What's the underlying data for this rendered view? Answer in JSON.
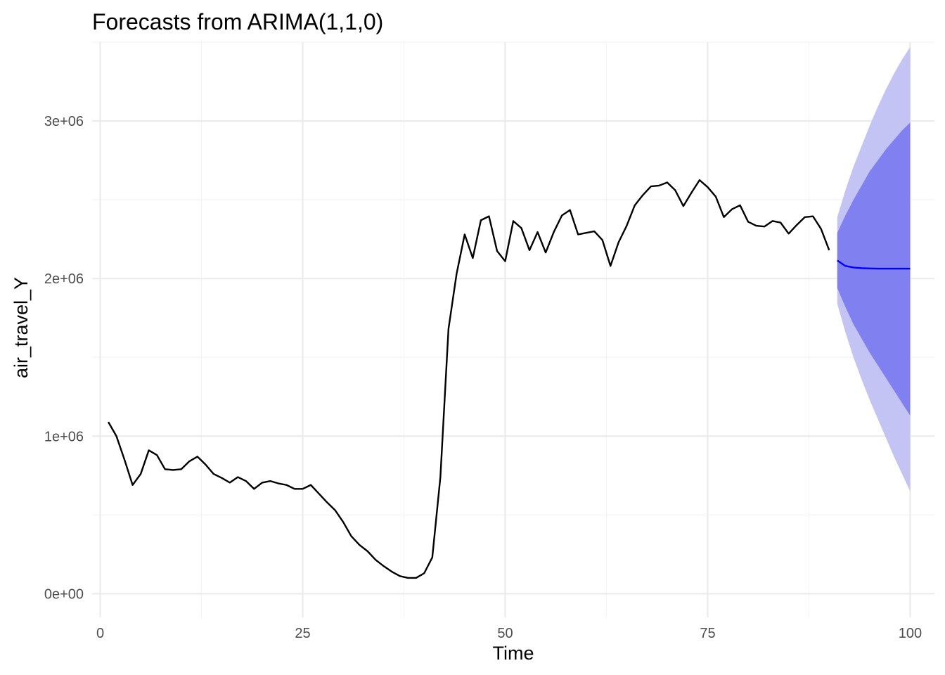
{
  "chart_data": {
    "type": "line",
    "title": "Forecasts from ARIMA(1,1,0)",
    "xlabel": "Time",
    "ylabel": "air_travel_Y",
    "xlim": [
      -1,
      103
    ],
    "ylim": [
      -150000,
      3500000
    ],
    "x_ticks": [
      0,
      25,
      50,
      75,
      100
    ],
    "x_tick_labels": [
      "0",
      "25",
      "50",
      "75",
      "100"
    ],
    "y_ticks": [
      0,
      1000000,
      2000000,
      3000000
    ],
    "y_tick_labels": [
      "0e+00",
      "1e+06",
      "2e+06",
      "3e+06"
    ],
    "grid": true,
    "colors": {
      "observed": "#000000",
      "forecast": "#0000ff",
      "band_80": "#8080f0",
      "band_95": "#c4c4f4"
    },
    "observed": {
      "x": [
        1,
        2,
        3,
        4,
        5,
        6,
        7,
        8,
        9,
        10,
        11,
        12,
        13,
        14,
        15,
        16,
        17,
        18,
        19,
        20,
        21,
        22,
        23,
        24,
        25,
        26,
        27,
        28,
        29,
        30,
        31,
        32,
        33,
        34,
        35,
        36,
        37,
        38,
        39,
        40,
        41,
        42,
        43,
        44,
        45,
        46,
        47,
        48,
        49,
        50,
        51,
        52,
        53,
        54,
        55,
        56,
        57,
        58,
        59,
        60,
        61,
        62,
        63,
        64,
        65,
        66,
        67,
        68,
        69,
        70,
        71,
        72,
        73,
        74,
        75,
        76,
        77,
        78,
        79,
        80,
        81,
        82,
        83,
        84,
        85,
        86,
        87,
        88,
        89,
        90
      ],
      "y": [
        1090000,
        1000000,
        850000,
        690000,
        760000,
        910000,
        880000,
        790000,
        785000,
        790000,
        840000,
        870000,
        820000,
        760000,
        735000,
        705000,
        740000,
        715000,
        665000,
        705000,
        715000,
        700000,
        690000,
        665000,
        665000,
        690000,
        635000,
        580000,
        530000,
        455000,
        365000,
        310000,
        270000,
        215000,
        175000,
        140000,
        112000,
        100000,
        100000,
        130000,
        230000,
        740000,
        1680000,
        2030000,
        2280000,
        2130000,
        2370000,
        2395000,
        2175000,
        2110000,
        2365000,
        2320000,
        2180000,
        2295000,
        2165000,
        2295000,
        2400000,
        2435000,
        2280000,
        2290000,
        2300000,
        2245000,
        2080000,
        2230000,
        2335000,
        2465000,
        2530000,
        2585000,
        2590000,
        2610000,
        2560000,
        2460000,
        2545000,
        2625000,
        2580000,
        2520000,
        2390000,
        2440000,
        2465000,
        2360000,
        2335000,
        2330000,
        2365000,
        2355000,
        2285000,
        2340000,
        2390000,
        2395000,
        2315000,
        2180000
      ]
    },
    "forecast": {
      "x": [
        91,
        92,
        93,
        94,
        95,
        96,
        97,
        98,
        99,
        100
      ],
      "mean": [
        2115000,
        2080000,
        2070000,
        2066000,
        2064000,
        2063000,
        2063000,
        2063000,
        2063000,
        2063000
      ],
      "lo80": [
        1940000,
        1820000,
        1710000,
        1620000,
        1530000,
        1450000,
        1370000,
        1290000,
        1210000,
        1130000
      ],
      "hi80": [
        2290000,
        2400000,
        2500000,
        2590000,
        2680000,
        2750000,
        2820000,
        2880000,
        2940000,
        2990000
      ],
      "lo95": [
        1840000,
        1660000,
        1500000,
        1360000,
        1230000,
        1110000,
        990000,
        870000,
        760000,
        650000
      ],
      "hi95": [
        2390000,
        2560000,
        2710000,
        2840000,
        2970000,
        3090000,
        3200000,
        3300000,
        3390000,
        3470000
      ]
    }
  }
}
